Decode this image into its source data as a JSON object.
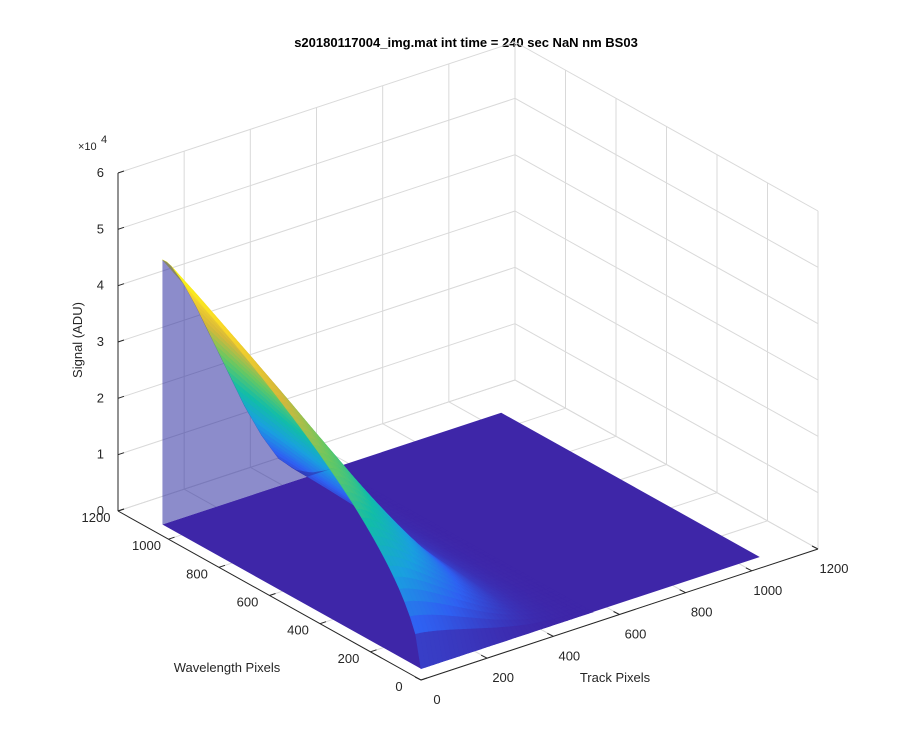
{
  "chart_data": {
    "type": "surface",
    "title": "s20180117004_img.mat int time = 240 sec  NaN nm BS03",
    "xlabel": "Wavelength Pixels",
    "ylabel": "Track Pixels",
    "zlabel": "Signal (ADU)",
    "z_exponent_base": "×10",
    "z_exponent_power": "4",
    "xlim": [
      0,
      1200
    ],
    "ylim": [
      0,
      1200
    ],
    "zlim": [
      0,
      60000
    ],
    "x_ticks": [
      "0",
      "200",
      "400",
      "600",
      "800",
      "1000",
      "1200"
    ],
    "y_ticks": [
      "0",
      "200",
      "400",
      "600",
      "800",
      "1000",
      "1200"
    ],
    "z_ticks": [
      "0",
      "1",
      "2",
      "3",
      "4",
      "5",
      "6"
    ],
    "grid": true,
    "colormap": [
      "#3e26a8",
      "#2f61f2",
      "#1a9fe0",
      "#12bda8",
      "#66c863",
      "#d6b83a",
      "#f9d72a",
      "#f9fb15"
    ],
    "surface": {
      "x_extent": [
        0,
        1024
      ],
      "y_extent": [
        0,
        1024
      ],
      "baseline_signal": 2000,
      "peak": {
        "x": 1020,
        "y": 0,
        "z": 49000
      },
      "profile_along_y": [
        {
          "y": 0,
          "z": 49000
        },
        {
          "y": 20,
          "z": 48000
        },
        {
          "y": 60,
          "z": 44000
        },
        {
          "y": 100,
          "z": 39000
        },
        {
          "y": 150,
          "z": 32000
        },
        {
          "y": 200,
          "z": 25000
        },
        {
          "y": 250,
          "z": 18000
        },
        {
          "y": 300,
          "z": 12000
        },
        {
          "y": 350,
          "z": 7000
        },
        {
          "y": 400,
          "z": 4000
        },
        {
          "y": 450,
          "z": 2500
        },
        {
          "y": 500,
          "z": 2000
        }
      ]
    }
  }
}
